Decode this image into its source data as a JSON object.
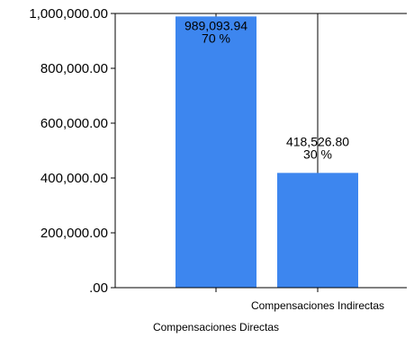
{
  "chart_data": {
    "type": "bar",
    "categories": [
      "Compensaciones Directas",
      "Compensaciones Indirectas"
    ],
    "values": [
      989093.94,
      418526.8
    ],
    "value_labels": [
      "989,093.94",
      "418,526.80"
    ],
    "percent_labels": [
      "70 %",
      "30 %"
    ],
    "title": "",
    "xlabel": "",
    "ylabel": "",
    "ylim": [
      0,
      1000000
    ],
    "yticks": [
      0,
      200000,
      400000,
      600000,
      800000,
      1000000
    ],
    "ytick_labels": [
      ".00",
      "200,000.00",
      "400,000.00",
      "600,000.00",
      "800,000.00",
      "1,000,000.00"
    ],
    "grid": "vertical",
    "legend": "none",
    "bar_color": "#3d86ef"
  }
}
